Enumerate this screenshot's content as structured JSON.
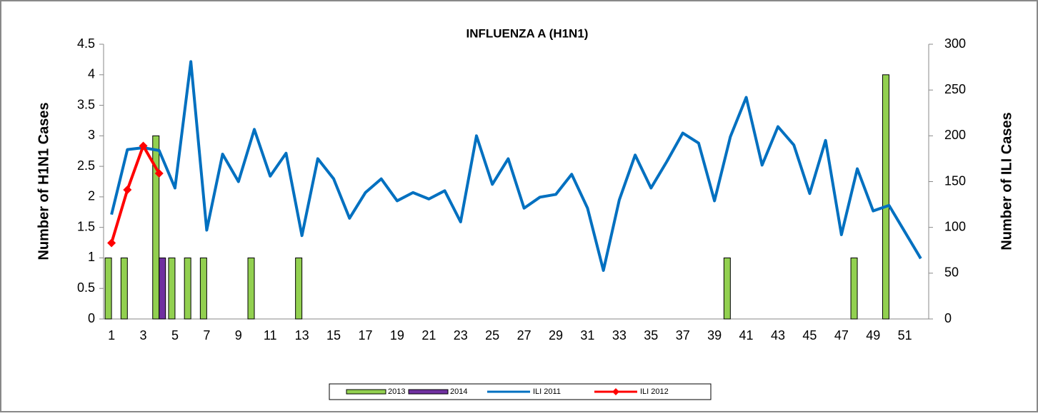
{
  "chart_data": {
    "type": "bar-line",
    "title": "INFLUENZA A (H1N1)",
    "y_label": "Number of H1N1 Cases",
    "y2_label": "Number of ILI Cases",
    "categories": [
      1,
      null,
      3,
      null,
      5,
      null,
      7,
      null,
      9,
      null,
      11,
      null,
      13,
      null,
      15,
      null,
      17,
      null,
      19,
      null,
      21,
      null,
      23,
      null,
      25,
      null,
      27,
      null,
      29,
      null,
      31,
      null,
      33,
      null,
      35,
      null,
      37,
      null,
      39,
      null,
      41,
      null,
      43,
      null,
      45,
      null,
      47,
      null,
      49,
      null,
      51,
      null
    ],
    "series": [
      {
        "name": "2013",
        "type": "bar",
        "color": "#92d050",
        "values": [
          1,
          1,
          0,
          3,
          1,
          1,
          1,
          0,
          0,
          1,
          0,
          0,
          1,
          0,
          0,
          0,
          0,
          0,
          0,
          0,
          0,
          0,
          0,
          0,
          0,
          0,
          0,
          0,
          0,
          0,
          0,
          0,
          0,
          0,
          0,
          0,
          0,
          0,
          0,
          1,
          0,
          0,
          0,
          0,
          0,
          0,
          0,
          1,
          0,
          4,
          0,
          0
        ]
      },
      {
        "name": "2014",
        "type": "bar",
        "color": "#7030a0",
        "values": [
          0,
          0,
          0,
          1,
          null,
          null,
          null,
          null,
          null,
          null,
          null,
          null,
          null,
          null,
          null,
          null,
          null,
          null,
          null,
          null,
          null,
          null,
          null,
          null,
          null,
          null,
          null,
          null,
          null,
          null,
          null,
          null,
          null,
          null,
          null,
          null,
          null,
          null,
          null,
          null,
          null,
          null,
          null,
          null,
          null,
          null,
          null,
          null,
          null,
          null,
          null,
          null
        ]
      },
      {
        "name": "ILI 2011",
        "type": "line",
        "axis": "y2",
        "color": "#0070c0",
        "values": [
          114,
          185,
          187,
          184,
          143,
          281,
          97,
          180,
          150,
          207,
          156,
          181,
          91,
          175,
          153,
          110,
          138,
          153,
          129,
          138,
          131,
          140,
          106,
          200,
          147,
          175,
          121,
          133,
          136,
          158,
          121,
          53,
          130,
          179,
          143,
          172,
          203,
          192,
          129,
          199,
          242,
          168,
          210,
          190,
          137,
          195,
          92,
          164,
          118,
          124,
          95,
          66
        ]
      },
      {
        "name": "ILI 2012",
        "type": "line",
        "axis": "y2",
        "marker": "diamond",
        "color": "#ff0000",
        "values": [
          83,
          141,
          189,
          159,
          null,
          null,
          null,
          null,
          null,
          null,
          null,
          null,
          null,
          null,
          null,
          null,
          null,
          null,
          null,
          null,
          null,
          null,
          null,
          null,
          null,
          null,
          null,
          null,
          null,
          null,
          null,
          null,
          null,
          null,
          null,
          null,
          null,
          null,
          null,
          null,
          null,
          null,
          null,
          null,
          null,
          null,
          null,
          null,
          null,
          null,
          null,
          null
        ]
      }
    ],
    "ylim": [
      0,
      4.5
    ],
    "yticks": [
      0,
      0.5,
      1,
      1.5,
      2,
      2.5,
      3,
      3.5,
      4,
      4.5
    ],
    "y2lim": [
      0,
      300
    ],
    "y2ticks": [
      0,
      50,
      100,
      150,
      200,
      250,
      300
    ],
    "legend": "bottom"
  }
}
